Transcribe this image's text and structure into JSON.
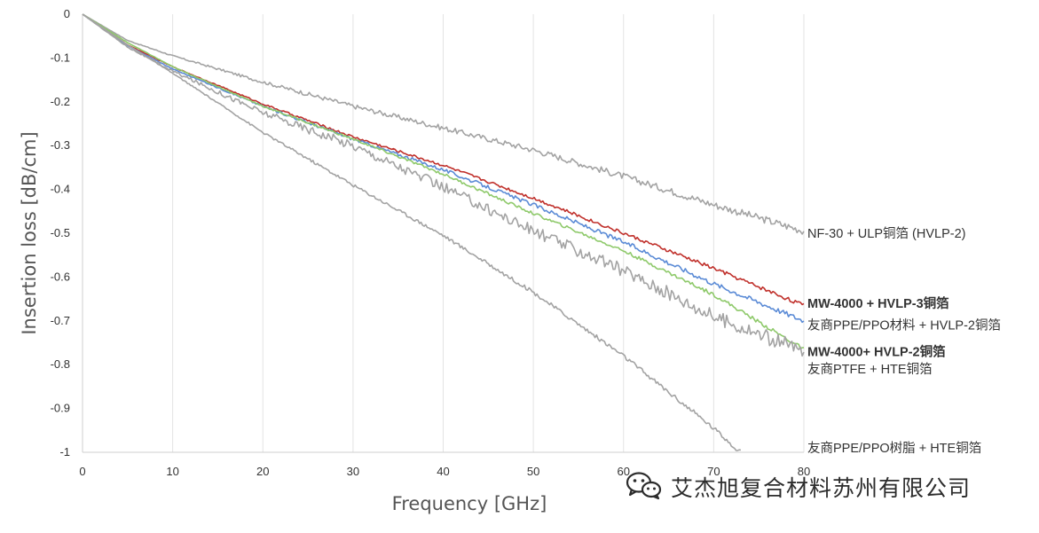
{
  "chart_data": {
    "type": "line",
    "xlabel": "Frequency [GHz]",
    "ylabel": "Insertion loss [dB/cm]",
    "xlim": [
      0,
      80
    ],
    "ylim": [
      -1,
      0
    ],
    "x_ticks": [
      "0",
      "10",
      "20",
      "30",
      "40",
      "50",
      "60",
      "70",
      "80"
    ],
    "y_ticks": [
      "0",
      "-0.1",
      "-0.2",
      "-0.3",
      "-0.4",
      "-0.5",
      "-0.6",
      "-0.7",
      "-0.8",
      "-0.9",
      "-1"
    ],
    "grid": "vertical",
    "legend": "direct labels at right end of lines",
    "series": [
      {
        "name": "NF-30 + ULP铜箔 (HVLP-2)",
        "color": "#a3a3a3",
        "bold": false,
        "noise": 0.003,
        "x": [
          0,
          5,
          10,
          20,
          30,
          40,
          50,
          60,
          70,
          80
        ],
        "y": [
          0,
          -0.06,
          -0.095,
          -0.155,
          -0.21,
          -0.26,
          -0.31,
          -0.37,
          -0.435,
          -0.495
        ]
      },
      {
        "name": "MW-4000 + HVLP-3铜箔",
        "color": "#c0302b",
        "bold": true,
        "noise": 0.0015,
        "x": [
          0,
          5,
          10,
          20,
          30,
          40,
          50,
          60,
          70,
          80
        ],
        "y": [
          0,
          -0.07,
          -0.12,
          -0.205,
          -0.28,
          -0.345,
          -0.42,
          -0.5,
          -0.58,
          -0.665
        ]
      },
      {
        "name": "友商PPE/PPO材料 + HVLP-2铜箔",
        "color": "#5b8bd6",
        "bold": false,
        "noise": 0.002,
        "x": [
          0,
          5,
          10,
          20,
          30,
          40,
          50,
          60,
          70,
          80
        ],
        "y": [
          0,
          -0.072,
          -0.125,
          -0.21,
          -0.285,
          -0.355,
          -0.435,
          -0.52,
          -0.615,
          -0.7
        ]
      },
      {
        "name": "MW-4000+ HVLP-2铜箔",
        "color": "#8ec96a",
        "bold": true,
        "noise": 0.0015,
        "x": [
          0,
          5,
          10,
          20,
          30,
          40,
          50,
          60,
          70,
          80
        ],
        "y": [
          0,
          -0.065,
          -0.12,
          -0.21,
          -0.285,
          -0.365,
          -0.455,
          -0.54,
          -0.64,
          -0.765
        ]
      },
      {
        "name": "友商PTFE + HTE铜箔",
        "color": "#a3a3a3",
        "bold": false,
        "noise": 0.006,
        "x": [
          0,
          5,
          10,
          20,
          30,
          40,
          50,
          60,
          70,
          80
        ],
        "y": [
          0,
          -0.075,
          -0.13,
          -0.225,
          -0.3,
          -0.395,
          -0.495,
          -0.585,
          -0.69,
          -0.77
        ]
      },
      {
        "name": "友商PPE/PPO树脂 + HTE铜箔",
        "color": "#a3a3a3",
        "bold": false,
        "noise": 0.002,
        "x": [
          0,
          5,
          10,
          20,
          30,
          40,
          50,
          60,
          70,
          73
        ],
        "y": [
          0,
          -0.07,
          -0.135,
          -0.27,
          -0.39,
          -0.505,
          -0.635,
          -0.78,
          -0.945,
          -1.0
        ]
      }
    ],
    "labels": [
      {
        "text": "NF-30 + ULP铜箔 (HVLP-2)",
        "color": "#333333",
        "bold": false,
        "y": -0.5
      },
      {
        "text": "MW-4000 + HVLP-3铜箔",
        "color": "#c0302b",
        "bold": true,
        "y": -0.66
      },
      {
        "text": "友商PPE/PPO材料 + HVLP-2铜箔",
        "color": "#333333",
        "bold": false,
        "y": -0.71
      },
      {
        "text": "MW-4000+ HVLP-2铜箔",
        "color": "#3d8a1e",
        "bold": true,
        "y": -0.77
      },
      {
        "text": "友商PTFE + HTE铜箔",
        "color": "#333333",
        "bold": false,
        "y": -0.81
      },
      {
        "text": "友商PPE/PPO树脂 + HTE铜箔",
        "color": "#333333",
        "bold": false,
        "y": -0.99
      }
    ]
  },
  "watermark": {
    "icon": "wechat-icon",
    "text": "艾杰旭复合材料苏州有限公司"
  }
}
